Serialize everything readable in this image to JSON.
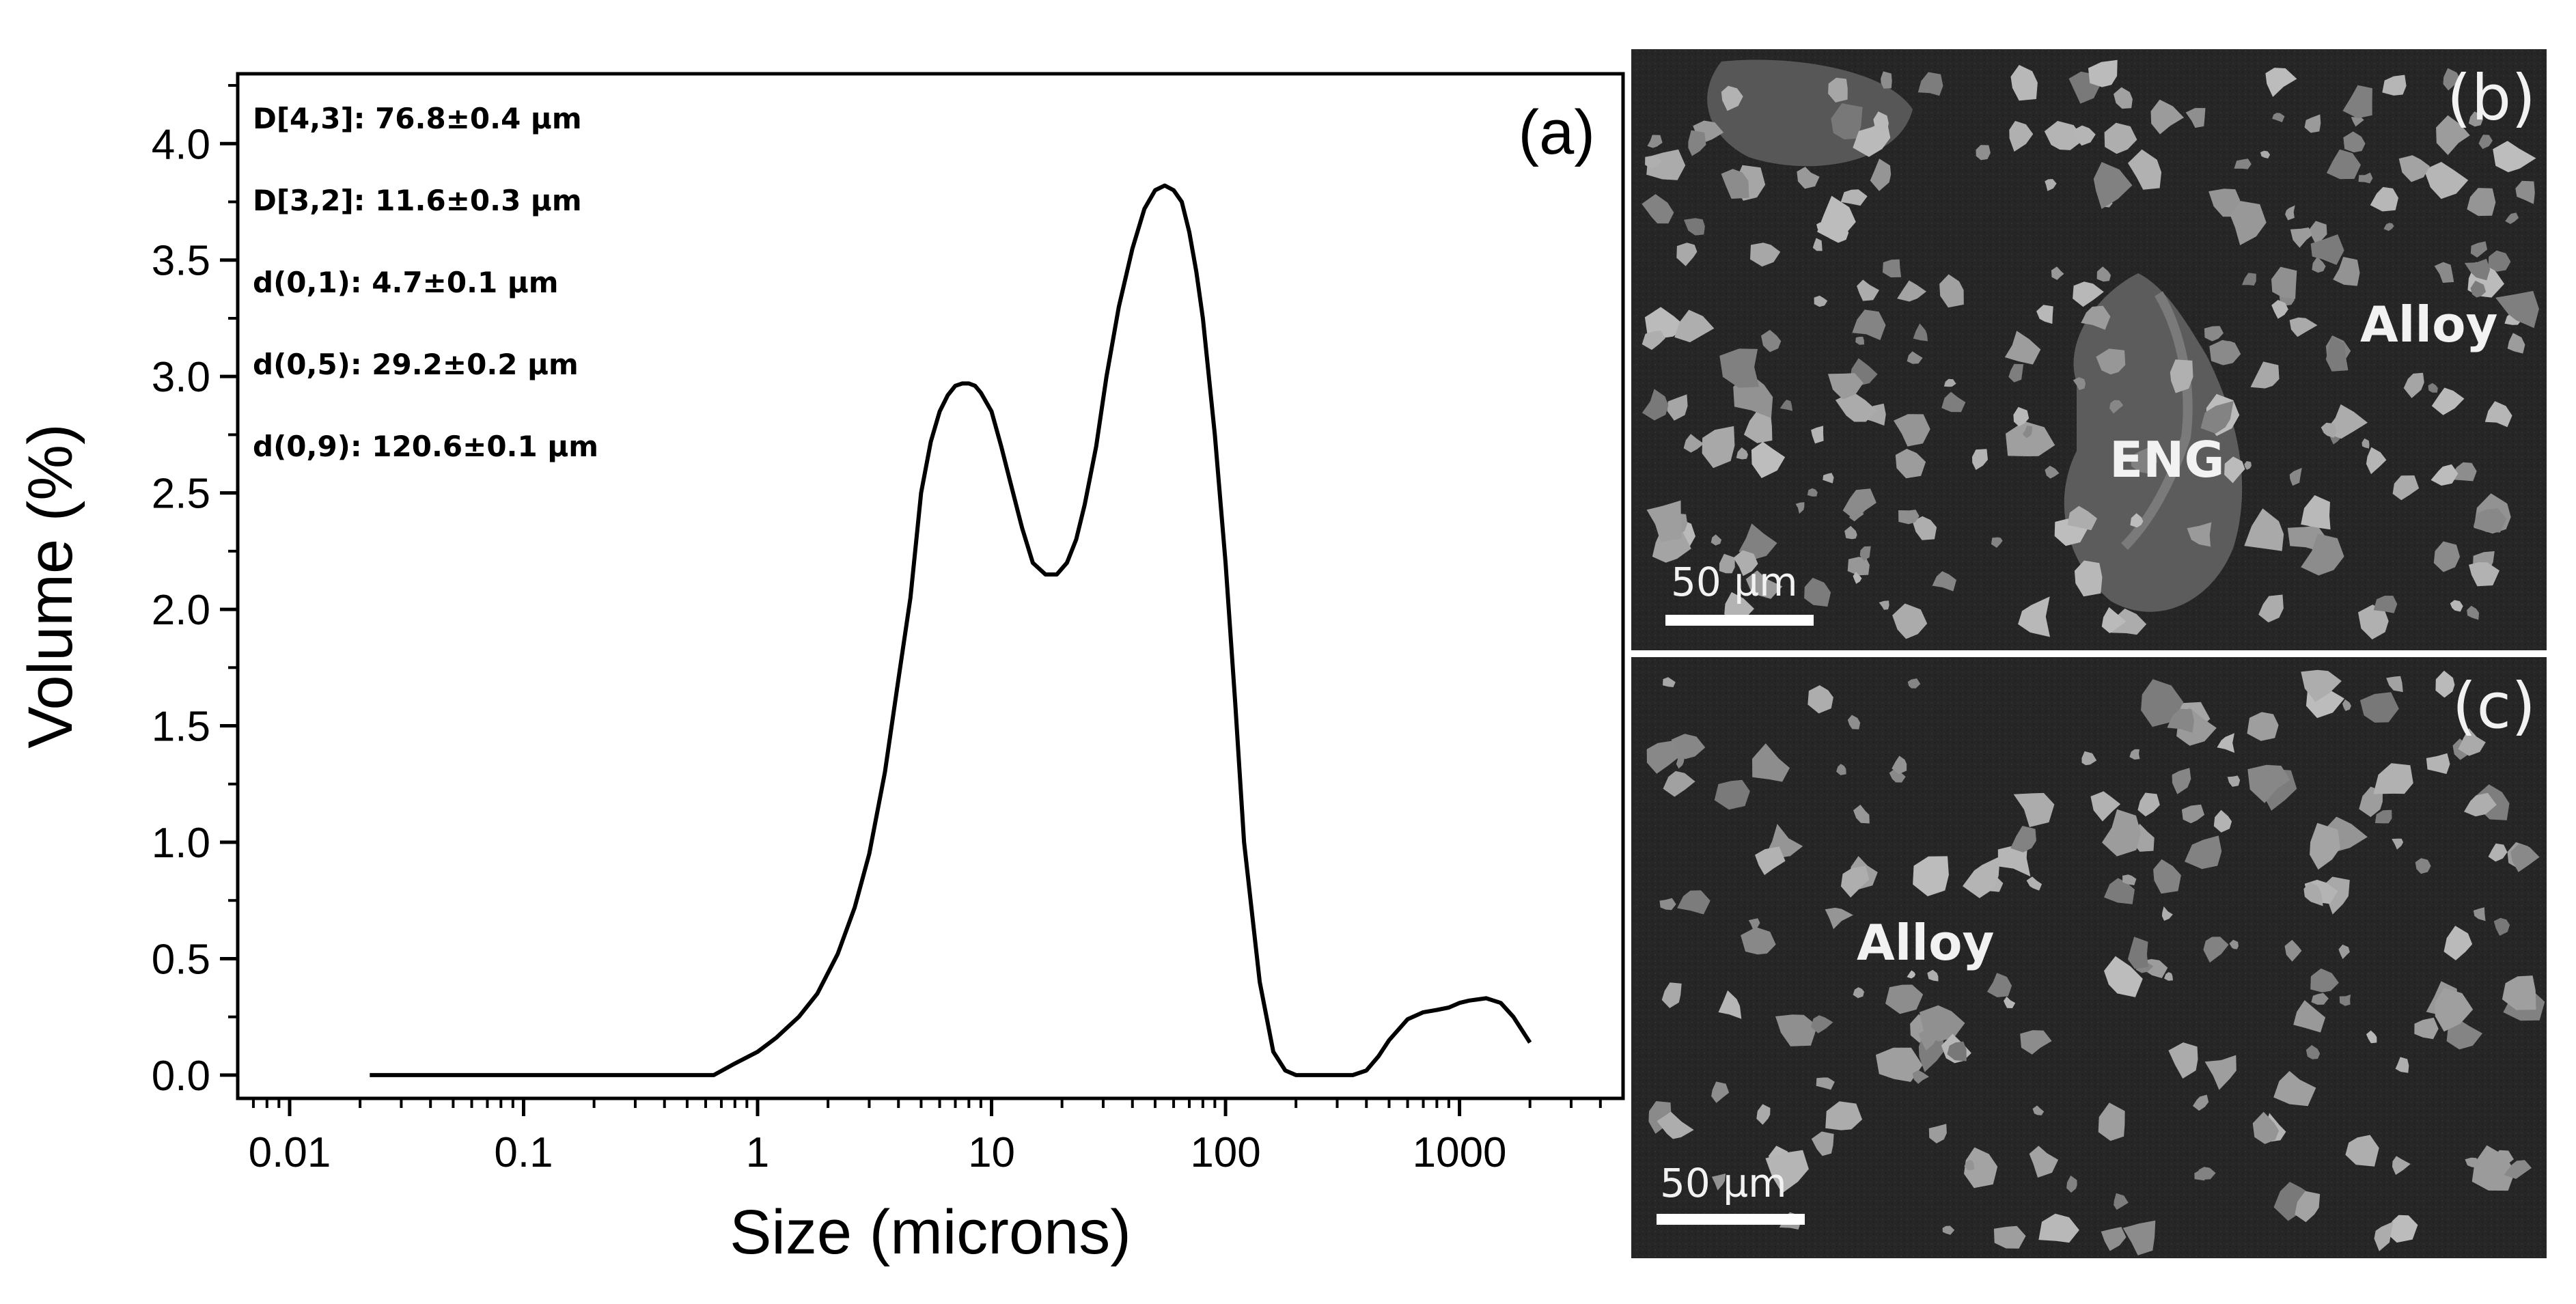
{
  "chart_data": {
    "type": "line",
    "panel_label": "(a)",
    "xlabel": "Size (microns)",
    "ylabel": "Volume (%)",
    "xscale": "log",
    "xlim": [
      0.006,
      5000
    ],
    "ylim": [
      -0.1,
      4.3
    ],
    "x_ticks": [
      0.01,
      0.1,
      1,
      10,
      100,
      1000
    ],
    "x_tick_labels": [
      "0.01",
      "0.1",
      "1",
      "10",
      "100",
      "1000"
    ],
    "y_ticks": [
      0.0,
      0.5,
      1.0,
      1.5,
      2.0,
      2.5,
      3.0,
      3.5,
      4.0
    ],
    "y_tick_labels": [
      "0.0",
      "0.5",
      "1.0",
      "1.5",
      "2.0",
      "2.5",
      "3.0",
      "3.5",
      "4.0"
    ],
    "grid": false,
    "legend": "none",
    "annotations": [
      "D[4,3]: 76.8±0.4 µm",
      "D[3,2]: 11.6±0.3 µm",
      "d(0,1): 4.7±0.1 µm",
      "d(0,5): 29.2±0.2 µm",
      "d(0,9): 120.6±0.1 µm"
    ],
    "series": [
      {
        "x": [
          0.022,
          0.05,
          0.1,
          0.2,
          0.4,
          0.65,
          0.8,
          1.0,
          1.2,
          1.5,
          1.8,
          2.2,
          2.6,
          3.0,
          3.5,
          4.0,
          4.5,
          5.0,
          5.5,
          6.0,
          6.5,
          7.0,
          7.5,
          8.0,
          8.5,
          9.0,
          10,
          11,
          12,
          13.5,
          15,
          17,
          19,
          21,
          23,
          25,
          28,
          31,
          35,
          40,
          45,
          50,
          55,
          60,
          65,
          70,
          75,
          80,
          90,
          100,
          110,
          120,
          140,
          160,
          180,
          200,
          220,
          250,
          300,
          350,
          400,
          450,
          500,
          600,
          700,
          800,
          900,
          1000,
          1100,
          1300,
          1500,
          1700,
          2000
        ],
        "y": [
          0.0,
          0.0,
          0.0,
          0.0,
          0.0,
          0.0,
          0.05,
          0.1,
          0.16,
          0.25,
          0.35,
          0.52,
          0.72,
          0.95,
          1.3,
          1.7,
          2.05,
          2.5,
          2.72,
          2.85,
          2.92,
          2.96,
          2.97,
          2.97,
          2.96,
          2.93,
          2.85,
          2.7,
          2.55,
          2.35,
          2.2,
          2.15,
          2.15,
          2.2,
          2.3,
          2.45,
          2.7,
          3.0,
          3.3,
          3.55,
          3.72,
          3.8,
          3.82,
          3.8,
          3.75,
          3.62,
          3.45,
          3.25,
          2.75,
          2.2,
          1.6,
          1.0,
          0.4,
          0.1,
          0.02,
          0.0,
          0.0,
          0.0,
          0.0,
          0.0,
          0.02,
          0.08,
          0.15,
          0.24,
          0.27,
          0.28,
          0.29,
          0.31,
          0.32,
          0.33,
          0.31,
          0.25,
          0.14
        ]
      }
    ]
  },
  "sem_panels": [
    {
      "letter": "(b)",
      "scale_label": "50 µm",
      "labels": [
        "Alloy",
        "ENG"
      ]
    },
    {
      "letter": "(c)",
      "scale_label": "50 µm",
      "labels": [
        "Alloy"
      ]
    }
  ]
}
